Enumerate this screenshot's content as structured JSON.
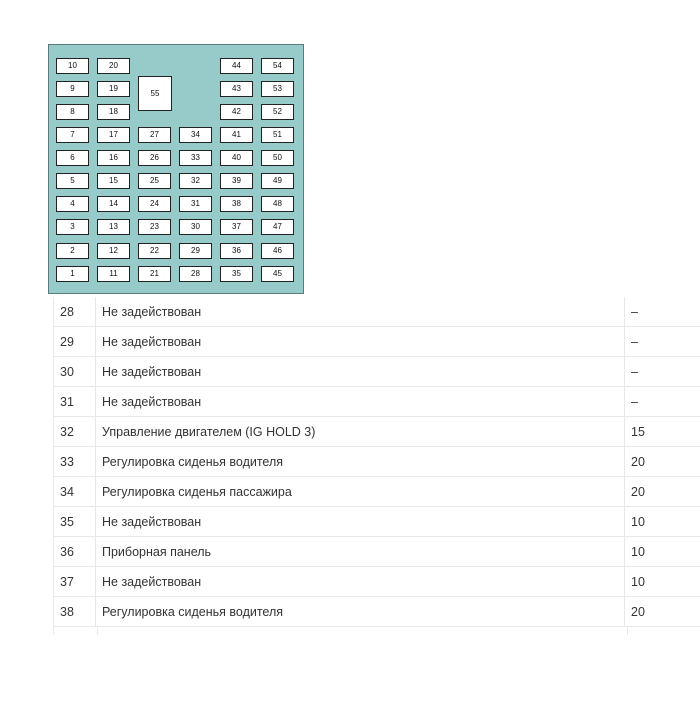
{
  "fuse_diagram": {
    "columns": [
      [
        "10",
        "9",
        "8",
        "7",
        "6",
        "5",
        "4",
        "3",
        "2",
        "1"
      ],
      [
        "20",
        "19",
        "18",
        "17",
        "16",
        "15",
        "14",
        "13",
        "12",
        "11"
      ],
      [
        null,
        null,
        null,
        "27",
        "26",
        "25",
        "24",
        "23",
        "22",
        "21"
      ],
      [
        null,
        null,
        null,
        "34",
        "33",
        "32",
        "31",
        "30",
        "29",
        "28"
      ],
      [
        "44",
        "43",
        "42",
        "41",
        "40",
        "39",
        "38",
        "37",
        "36",
        "35"
      ],
      [
        "54",
        "53",
        "52",
        "51",
        "50",
        "49",
        "48",
        "47",
        "46",
        "45"
      ]
    ],
    "large_fuse": "55",
    "background": "#97cbca"
  },
  "table": {
    "rows": [
      {
        "num": "28",
        "desc": "Не задействован",
        "amp": "–"
      },
      {
        "num": "29",
        "desc": "Не задействован",
        "amp": "–"
      },
      {
        "num": "30",
        "desc": "Не задействован",
        "amp": "–"
      },
      {
        "num": "31",
        "desc": "Не задействован",
        "amp": "–"
      },
      {
        "num": "32",
        "desc": "Управление двигателем (IG HOLD 3)",
        "amp": "15"
      },
      {
        "num": "33",
        "desc": "Регулировка сиденья водителя",
        "amp": "20"
      },
      {
        "num": "34",
        "desc": "Регулировка сиденья пассажира",
        "amp": "20"
      },
      {
        "num": "35",
        "desc": "Не задействован",
        "amp": "10"
      },
      {
        "num": "36",
        "desc": "Приборная панель",
        "amp": "10"
      },
      {
        "num": "37",
        "desc": "Не задействован",
        "amp": "10"
      },
      {
        "num": "38",
        "desc": "Регулировка сиденья водителя",
        "amp": "20"
      }
    ]
  }
}
